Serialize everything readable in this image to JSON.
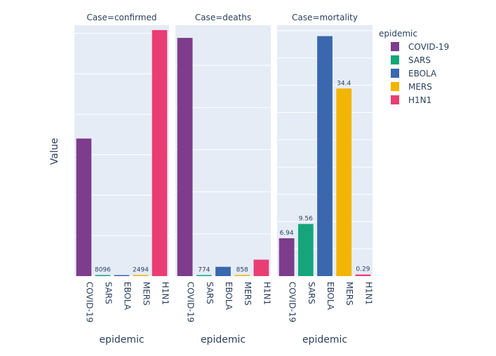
{
  "chart_data": {
    "type": "bar",
    "yaxis_title": "Value",
    "xaxis_title": "epidemic",
    "categories": [
      "COVID-19",
      "SARS",
      "EBOLA",
      "MERS",
      "H1N1"
    ],
    "colors": [
      "#7d3c8c",
      "#16a57a",
      "#3a67ad",
      "#f2b500",
      "#e83e74"
    ],
    "legend": {
      "title": "epidemic",
      "items": [
        "COVID-19",
        "SARS",
        "EBOLA",
        "MERS",
        "H1N1"
      ],
      "placement": "right"
    },
    "grid": true,
    "facets": [
      {
        "title": "Case=confirmed",
        "ylim": [
          0,
          62000000
        ],
        "gridlines": [
          0,
          10000000,
          20000000,
          30000000,
          40000000,
          50000000,
          60000000
        ],
        "values": [
          34000000,
          8096,
          28600,
          2494,
          60800000
        ],
        "labels": [
          "",
          "8096",
          "",
          "2494",
          ""
        ]
      },
      {
        "title": "Case=deaths",
        "ylim": [
          0,
          1190000
        ],
        "gridlines": [
          0,
          200000,
          400000,
          600000,
          800000,
          1000000
        ],
        "values": [
          1130000,
          774,
          44000,
          858,
          78000
        ],
        "labels": [
          "",
          "774",
          "",
          "858",
          ""
        ]
      },
      {
        "title": "Case=mortality",
        "ylim": [
          0,
          46
        ],
        "gridlines": [
          0,
          5,
          10,
          15,
          20,
          25,
          30,
          35,
          40,
          45
        ],
        "values": [
          6.94,
          9.56,
          44,
          34.4,
          0.29
        ],
        "labels": [
          "6.94",
          "9.56",
          "",
          "34.4",
          "0.29"
        ]
      }
    ]
  }
}
